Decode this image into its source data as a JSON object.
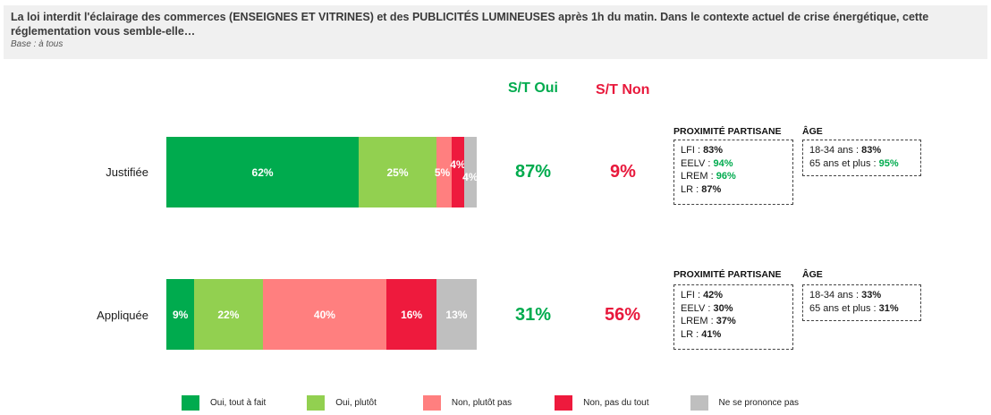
{
  "header": {
    "question": "La loi interdit l'éclairage des commerces (ENSEIGNES ET VITRINES) et des PUBLICITÉS LUMINEUSES après 1h du matin. Dans le contexte actuel de crise énergétique, cette réglementation vous semble-elle…",
    "base": "Base : à tous"
  },
  "columns": {
    "st_oui": "S/T Oui",
    "st_non": "S/T Non"
  },
  "colors": {
    "oui_tout_a_fait": "#00ab4e",
    "oui_plutot": "#92d050",
    "non_plutot_pas": "#ff7f7f",
    "non_pas_du_tout": "#ee1a3d",
    "nsp": "#bfbfbf",
    "st_oui": "#00ab4e",
    "st_non": "#e8193c"
  },
  "chart_data": {
    "type": "bar",
    "orientation": "horizontal-stacked-100",
    "title": "La loi interdit l'éclairage des commerces (ENSEIGNES ET VITRINES) et des PUBLICITÉS LUMINEUSES après 1h du matin. Dans le contexte actuel de crise énergétique, cette réglementation vous semble-elle…",
    "subtitle": "Base : à tous",
    "categories": [
      "Justifiée",
      "Appliquée"
    ],
    "series": [
      {
        "name": "Oui, tout à fait",
        "values": [
          62,
          9
        ],
        "labels": [
          "62%",
          "9%"
        ]
      },
      {
        "name": "Oui, plutôt",
        "values": [
          25,
          22
        ],
        "labels": [
          "25%",
          "22%"
        ]
      },
      {
        "name": "Non, plutôt pas",
        "values": [
          5,
          40
        ],
        "labels": [
          "5%",
          "40%"
        ]
      },
      {
        "name": "Non, pas du tout",
        "values": [
          4,
          16
        ],
        "labels": [
          "4%",
          "16%"
        ]
      },
      {
        "name": "Ne se prononce pas",
        "values": [
          4,
          13
        ],
        "labels": [
          "4%",
          "13%"
        ]
      }
    ],
    "totals": {
      "st_oui": [
        "87%",
        "31%"
      ],
      "st_non": [
        "9%",
        "56%"
      ]
    },
    "legend_position": "bottom",
    "xlim": [
      0,
      100
    ]
  },
  "rows": [
    {
      "label": "Justifiée",
      "st_oui": "87%",
      "st_non": "9%",
      "partisan_title": "PROXIMITÉ PARTISANE",
      "partisan": [
        {
          "name": "LFI : ",
          "value": "83%",
          "highlight": false
        },
        {
          "name": "EELV : ",
          "value": "94%",
          "highlight": true
        },
        {
          "name": "LREM : ",
          "value": "96%",
          "highlight": true
        },
        {
          "name": "LR : ",
          "value": "87%",
          "highlight": false
        }
      ],
      "age_title": "ÂGE",
      "age": [
        {
          "name": "18-34 ans : ",
          "value": "83%",
          "highlight": false
        },
        {
          "name": "65 ans et plus : ",
          "value": "95%",
          "highlight": true
        }
      ]
    },
    {
      "label": "Appliquée",
      "st_oui": "31%",
      "st_non": "56%",
      "partisan_title": "PROXIMITÉ PARTISANE",
      "partisan": [
        {
          "name": "LFI : ",
          "value": "42%",
          "highlight": false
        },
        {
          "name": "EELV : ",
          "value": "30%",
          "highlight": false
        },
        {
          "name": "LREM : ",
          "value": "37%",
          "highlight": false
        },
        {
          "name": "LR : ",
          "value": "41%",
          "highlight": false
        }
      ],
      "age_title": "ÂGE",
      "age": [
        {
          "name": "18-34 ans : ",
          "value": "33%",
          "highlight": false
        },
        {
          "name": "65 ans et plus : ",
          "value": "31%",
          "highlight": false
        }
      ]
    }
  ],
  "legend": [
    {
      "label": "Oui, tout à fait",
      "color": "#00ab4e"
    },
    {
      "label": "Oui, plutôt",
      "color": "#92d050"
    },
    {
      "label": "Non, plutôt pas",
      "color": "#ff7f7f"
    },
    {
      "label": "Non, pas du tout",
      "color": "#ee1a3d"
    },
    {
      "label": "Ne se prononce pas",
      "color": "#bfbfbf"
    }
  ]
}
